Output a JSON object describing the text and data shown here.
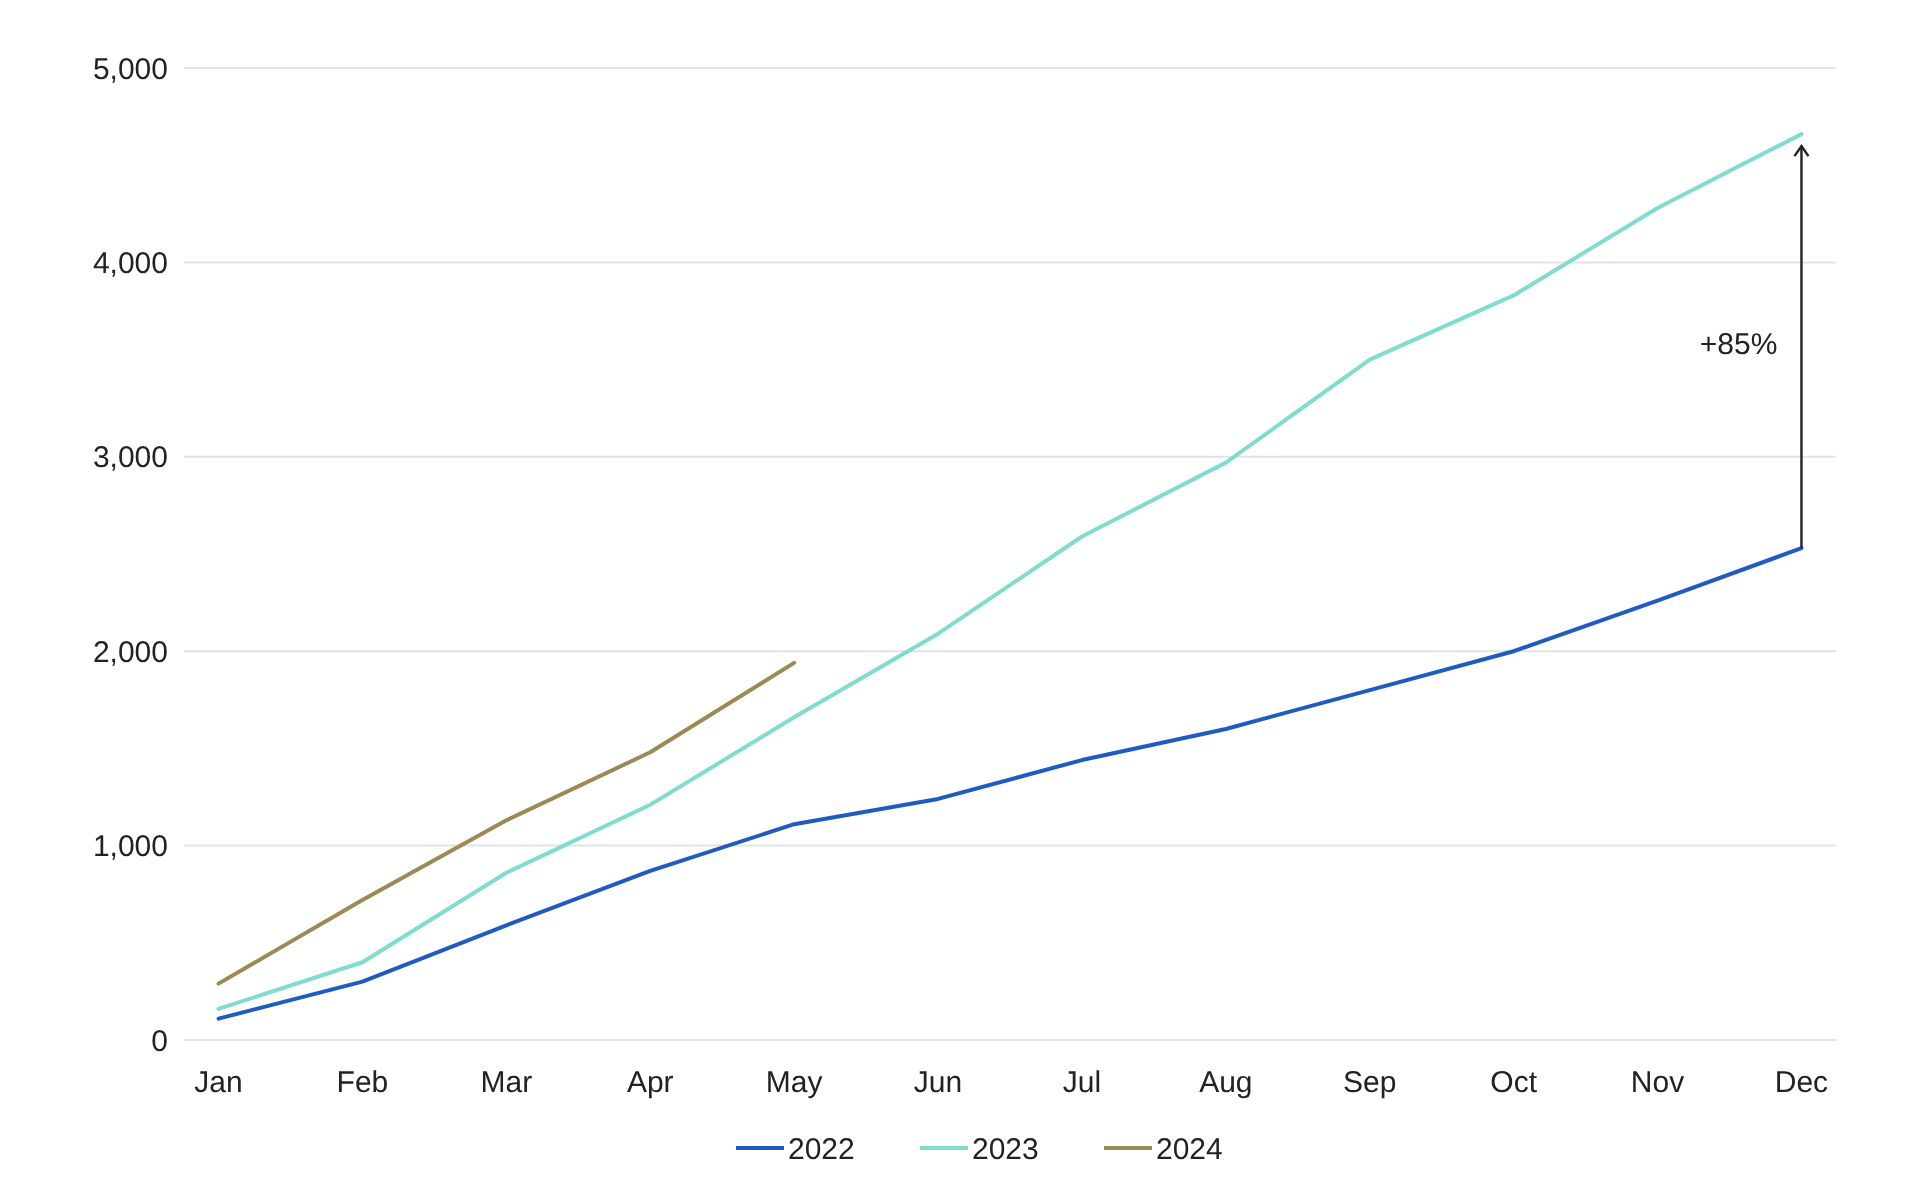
{
  "chart_data": {
    "type": "line",
    "categories": [
      "Jan",
      "Feb",
      "Mar",
      "Apr",
      "May",
      "Jun",
      "Jul",
      "Aug",
      "Sep",
      "Oct",
      "Nov",
      "Dec"
    ],
    "series": [
      {
        "name": "2022",
        "color": "#1f5bc0",
        "values": [
          110,
          300,
          590,
          870,
          1110,
          1240,
          1440,
          1600,
          1800,
          2000,
          2260,
          2530
        ]
      },
      {
        "name": "2023",
        "color": "#7fdccf",
        "values": [
          160,
          400,
          860,
          1210,
          1660,
          2090,
          2590,
          2970,
          3500,
          3830,
          4280,
          4660
        ]
      },
      {
        "name": "2024",
        "color": "#9c8a55",
        "values": [
          290,
          720,
          1130,
          1480,
          1940,
          null,
          null,
          null,
          null,
          null,
          null,
          null
        ]
      }
    ],
    "ylim": [
      0,
      5000
    ],
    "yticks": [
      {
        "value": 0,
        "label": "0"
      },
      {
        "value": 1000,
        "label": "1,000"
      },
      {
        "value": 2000,
        "label": "2,000"
      },
      {
        "value": 3000,
        "label": "3,000"
      },
      {
        "value": 4000,
        "label": "4,000"
      },
      {
        "value": 5000,
        "label": "5,000"
      }
    ],
    "grid": "y",
    "legend": "bottom",
    "marker": "none",
    "line_style": "solid",
    "annotations": [
      "+85%"
    ]
  }
}
